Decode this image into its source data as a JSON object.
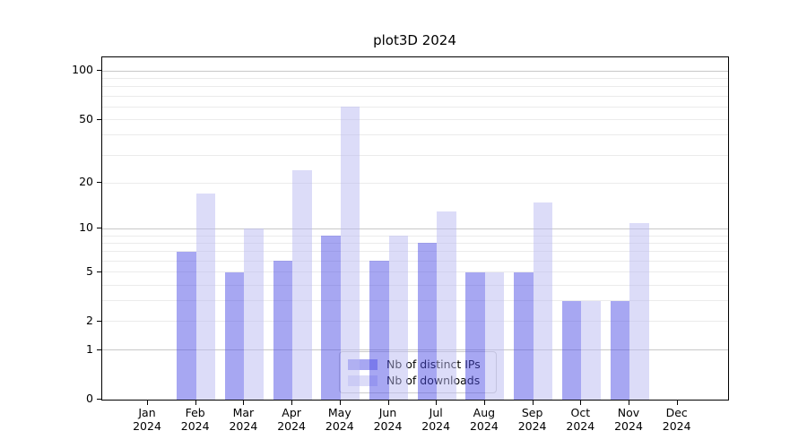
{
  "title": "plot3D 2024",
  "chart_data": {
    "type": "bar",
    "title": "plot3D 2024",
    "categories": [
      "Jan 2024",
      "Feb 2024",
      "Mar 2024",
      "Apr 2024",
      "May 2024",
      "Jun 2024",
      "Jul 2024",
      "Aug 2024",
      "Sep 2024",
      "Oct 2024",
      "Nov 2024",
      "Dec 2024"
    ],
    "series": [
      {
        "name": "Nb of distinct IPs",
        "key": "ips",
        "color": "rgba(80,80,230,0.5)",
        "values": [
          0,
          7,
          5,
          6,
          9,
          6,
          8,
          5,
          5,
          3,
          3,
          0
        ]
      },
      {
        "name": "Nb of downloads",
        "key": "downloads",
        "color": "rgba(185,185,241,0.5)",
        "values": [
          0,
          17,
          10,
          24,
          60,
          9,
          13,
          5,
          15,
          3,
          11,
          0
        ]
      }
    ],
    "yscale": "log1p",
    "ylim": [
      0,
      123
    ],
    "y_ticks": [
      {
        "label": "100",
        "value": 100
      },
      {
        "label": "50",
        "value": 50
      },
      {
        "label": "20",
        "value": 20
      },
      {
        "label": "10",
        "value": 10
      },
      {
        "label": "5",
        "value": 5
      },
      {
        "label": "2",
        "value": 2
      },
      {
        "label": "1",
        "value": 1
      },
      {
        "label": "0",
        "value": 0
      }
    ],
    "grid_major_values": [
      1,
      10,
      100
    ],
    "grid_minor_values": [
      2,
      3,
      4,
      5,
      6,
      7,
      8,
      9,
      20,
      30,
      40,
      50,
      60,
      70,
      80,
      90
    ],
    "grid": true,
    "legend_position": "lower center"
  },
  "legend": {
    "items": [
      {
        "label": "Nb of distinct IPs",
        "color": "rgba(80,80,230,0.5)"
      },
      {
        "label": "Nb of downloads",
        "color": "rgba(185,185,241,0.5)"
      }
    ]
  }
}
